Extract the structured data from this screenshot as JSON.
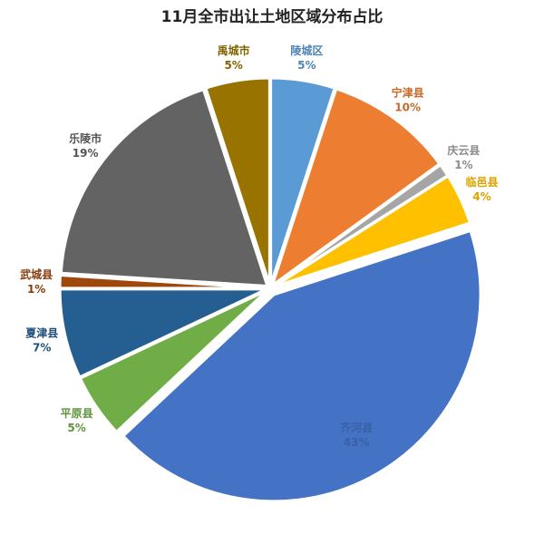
{
  "chart_data": {
    "type": "pie",
    "title": "11月全市出让土地区域分布占比",
    "slices": [
      {
        "name": "陵城区",
        "value": 5,
        "label": "5%",
        "color": "#5b9bd5"
      },
      {
        "name": "宁津县",
        "value": 10,
        "label": "10%",
        "color": "#ed7d31"
      },
      {
        "name": "庆云县",
        "value": 1,
        "label": "1%",
        "color": "#a5a5a5"
      },
      {
        "name": "临邑县",
        "value": 4,
        "label": "4%",
        "color": "#ffc000"
      },
      {
        "name": "齐河县",
        "value": 43,
        "label": "43%",
        "color": "#4472c4"
      },
      {
        "name": "平原县",
        "value": 5,
        "label": "5%",
        "color": "#70ad47"
      },
      {
        "name": "夏津县",
        "value": 7,
        "label": "7%",
        "color": "#255e91"
      },
      {
        "name": "武城县",
        "value": 1,
        "label": "1%",
        "color": "#9e480e"
      },
      {
        "name": "乐陵市",
        "value": 19,
        "label": "19%",
        "color": "#636363"
      },
      {
        "name": "禹城市",
        "value": 5,
        "label": "5%",
        "color": "#997300"
      }
    ],
    "legend": "none",
    "data_labels": "outside"
  }
}
